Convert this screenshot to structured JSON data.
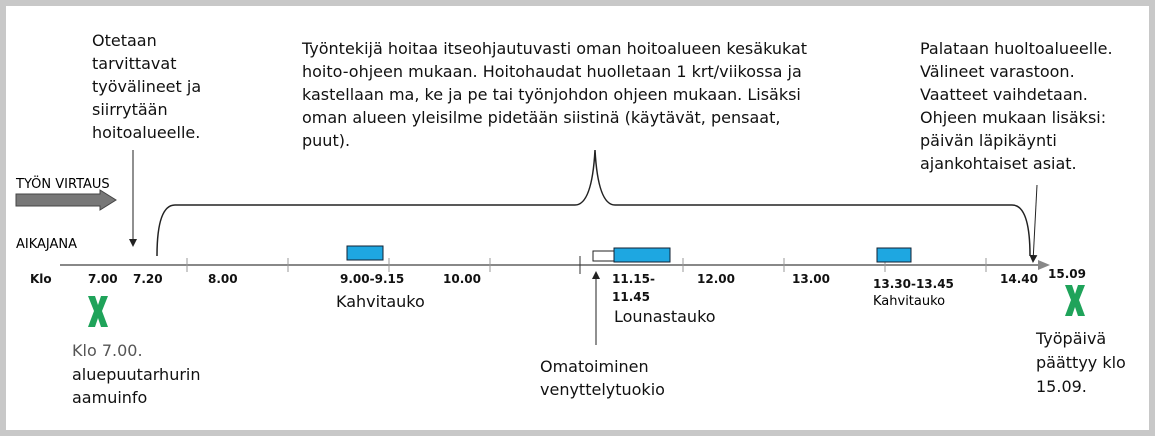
{
  "flow_label": "TYÖN VIRTAUS",
  "timeline_label": "AIKAJANA",
  "start_text": [
    "Otetaan",
    "tarvittavat",
    "työvälineet ja",
    "siirrytään",
    "hoitoalueelle."
  ],
  "work_text": [
    "Työntekijä hoitaa itseohjautuvasti oman hoitoalueen kesäkukat",
    "hoito-ohjeen mukaan. Hoitohaudat huolletaan 1 krt/viikossa ja",
    "kastellaan ma, ke ja pe tai työnjohdon ohjeen mukaan.  Lisäksi",
    "oman alueen yleisilme pidetään siistinä (käytävät, pensaat,",
    "puut)."
  ],
  "end_text": [
    "Palataan huoltoalueelle.",
    "Välineet varastoon.",
    "Vaatteet vaihdetaan.",
    "Ohjeen mukaan lisäksi:",
    "päivän läpikäynti",
    "ajankohtaiset asiat."
  ],
  "times": [
    "Klo",
    "7.00",
    "7.20",
    "8.00",
    "9.00-9.15",
    "10.00",
    "11.15-",
    "11.45",
    "12.00",
    "13.00",
    "13.30-13.45",
    "14.40",
    "15.09"
  ],
  "break1": "Kahvitauko",
  "lunch": "Lounastauko",
  "break2": "Kahvitauko",
  "stretch": [
    "Omatoiminen",
    "venyttelytuokio"
  ],
  "morning": [
    "Klo 7.00.",
    "aluepuutarhurin",
    "aamuinfo"
  ],
  "day_end": [
    "Työpäivä",
    "päättyy klo",
    "15.09."
  ]
}
